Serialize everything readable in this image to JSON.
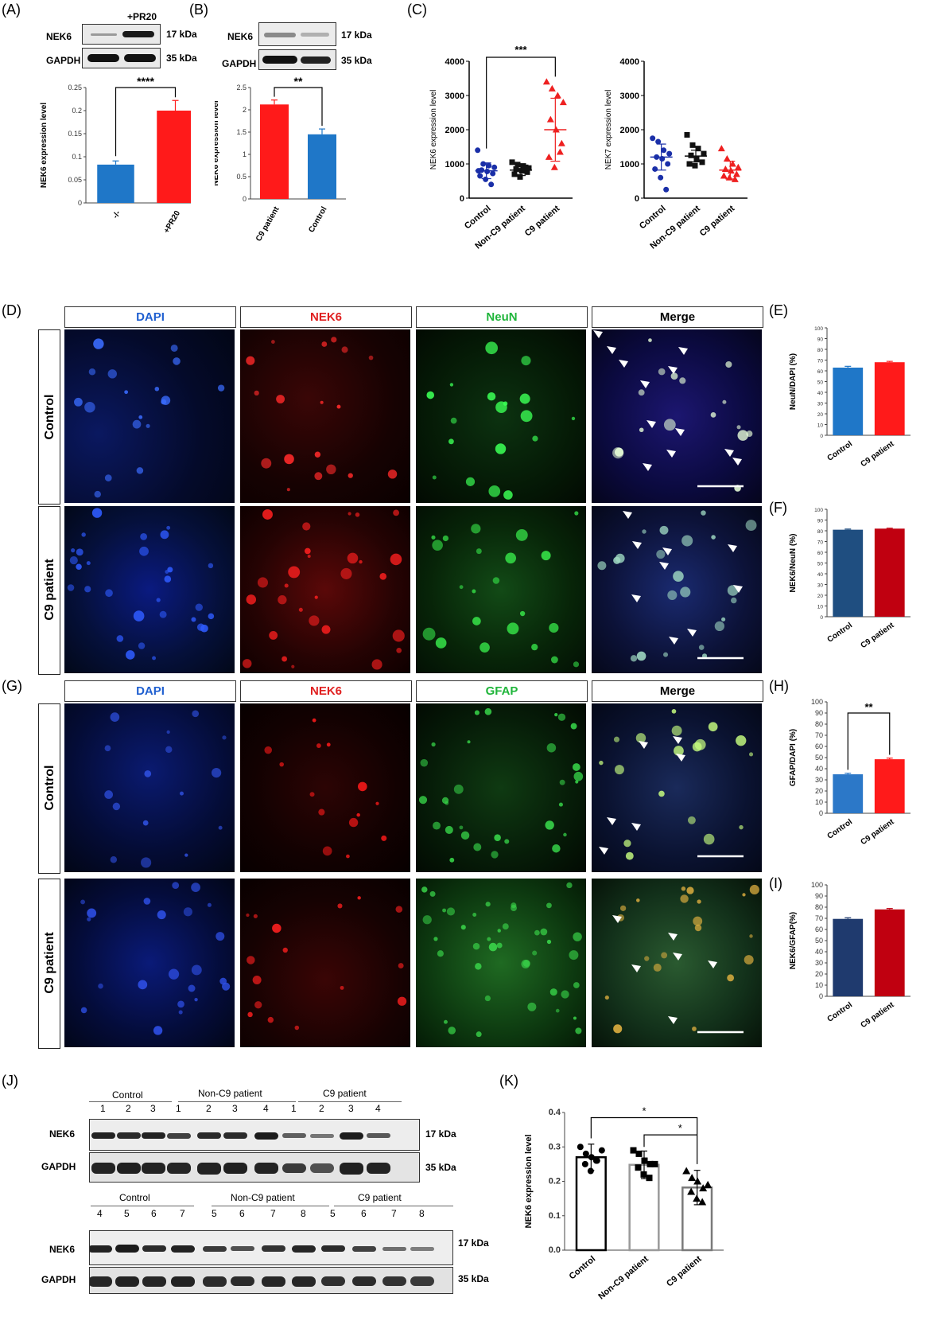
{
  "panels": {
    "A": "(A)",
    "B": "(B)",
    "C": "(C)",
    "D": "(D)",
    "E": "(E)",
    "F": "(F)",
    "G": "(G)",
    "H": "(H)",
    "I": "(I)",
    "J": "(J)",
    "K": "(K)"
  },
  "blots": {
    "A": {
      "treatment_label": "+PR20",
      "rows": [
        "NEK6",
        "GAPDH"
      ],
      "kda": [
        "17 kDa",
        "35 kDa"
      ]
    },
    "B": {
      "rows": [
        "NEK6",
        "GAPDH"
      ],
      "kda": [
        "17 kDa",
        "35 kDa"
      ]
    },
    "J_top": {
      "groups": [
        "Control",
        "Non-C9 patient",
        "C9 patient"
      ],
      "lanes": [
        "1",
        "2",
        "3",
        "1",
        "2",
        "3",
        "4",
        "1",
        "2",
        "3",
        "4"
      ],
      "rows": [
        "NEK6",
        "GAPDH"
      ],
      "kda": [
        "17 kDa",
        "35 kDa"
      ]
    },
    "J_bottom": {
      "groups": [
        "Control",
        "Non-C9 patient",
        "C9 patient"
      ],
      "lanes": [
        "4",
        "5",
        "6",
        "7",
        "5",
        "6",
        "7",
        "8",
        "5",
        "6",
        "7",
        "8"
      ],
      "rows": [
        "NEK6",
        "GAPDH"
      ],
      "kda": [
        "17 kDa",
        "35 kDa"
      ]
    }
  },
  "micrographs": {
    "D": {
      "columns": [
        "DAPI",
        "NEK6",
        "NeuN",
        "Merge"
      ],
      "rows": [
        "Control",
        "C9 patient"
      ]
    },
    "G": {
      "columns": [
        "DAPI",
        "NEK6",
        "GFAP",
        "Merge"
      ],
      "rows": [
        "Control",
        "C9 patient"
      ]
    },
    "column_colors": [
      "#1f5fd0",
      "#e02020",
      "#1fb53a",
      "#000000"
    ]
  },
  "chart_data": [
    {
      "panel": "A",
      "type": "bar",
      "categories": [
        "-/-",
        "+PR20"
      ],
      "values": [
        0.083,
        0.2
      ],
      "errors": [
        0.008,
        0.022
      ],
      "colors": [
        "#1f77c8",
        "#ff1a1a"
      ],
      "ylabel": "NEK6 expression level",
      "ylim": [
        0,
        0.25
      ],
      "yticks": [
        "0",
        "0.05",
        "0.1",
        "0.15",
        "0.2",
        "0.25"
      ],
      "significance": "****"
    },
    {
      "panel": "B",
      "type": "bar",
      "categories": [
        "C9 patient",
        "Control"
      ],
      "values": [
        2.12,
        1.45
      ],
      "errors": [
        0.1,
        0.12
      ],
      "colors": [
        "#ff1a1a",
        "#1f77c8"
      ],
      "ylabel": "NEK6 expression level",
      "ylim": [
        0,
        2.5
      ],
      "yticks": [
        "0",
        "0.5",
        "1",
        "1.5",
        "2",
        "2.5"
      ],
      "significance": "**"
    },
    {
      "panel": "C-left",
      "type": "scatter",
      "categories": [
        "Control",
        "Non-C9 patient",
        "C9 patient"
      ],
      "ylabel": "NEK6 expression level",
      "ylim": [
        0,
        4000
      ],
      "yticks": [
        "0",
        "1000",
        "2000",
        "3000",
        "4000"
      ],
      "means": [
        800,
        820,
        2000
      ],
      "sd": [
        230,
        160,
        920
      ],
      "series": [
        {
          "values": [
            1400,
            1000,
            950,
            900,
            820,
            780,
            720,
            650,
            550,
            400,
            800
          ]
        },
        {
          "values": [
            1050,
            980,
            940,
            880,
            850,
            800,
            760,
            700,
            620,
            900
          ]
        },
        {
          "values": [
            3400,
            3200,
            3000,
            2800,
            2300,
            2000,
            1600,
            1200,
            900,
            1350
          ]
        }
      ],
      "colors": [
        "#1a2fa8",
        "#111111",
        "#ee2020"
      ],
      "markers": [
        "circle",
        "square",
        "triangle"
      ],
      "significance": "***"
    },
    {
      "panel": "C-right",
      "type": "scatter",
      "categories": [
        "Control",
        "Non-C9 patient",
        "C9 patient"
      ],
      "ylabel": "NEK7 expression level",
      "ylim": [
        0,
        4000
      ],
      "yticks": [
        "0",
        "1000",
        "2000",
        "3000",
        "4000"
      ],
      "means": [
        1200,
        1230,
        820
      ],
      "sd": [
        380,
        170,
        260
      ],
      "series": [
        {
          "values": [
            1750,
            1650,
            1400,
            1300,
            1200,
            1150,
            1000,
            850,
            600,
            250
          ]
        },
        {
          "values": [
            1850,
            1550,
            1450,
            1300,
            1250,
            1150,
            1050,
            1000,
            950
          ]
        },
        {
          "values": [
            1450,
            1150,
            1000,
            900,
            850,
            800,
            700,
            650,
            600,
            550
          ]
        }
      ],
      "colors": [
        "#1a2fa8",
        "#111111",
        "#ee2020"
      ],
      "markers": [
        "circle",
        "square",
        "triangle"
      ]
    },
    {
      "panel": "E",
      "type": "bar",
      "categories": [
        "Control",
        "C9 patient"
      ],
      "values": [
        63,
        68
      ],
      "errors": [
        1.2,
        0.8
      ],
      "colors": [
        "#1f77c8",
        "#ff1a1a"
      ],
      "ylabel": "NeuN/DAPI (%)",
      "ylim": [
        0,
        100
      ],
      "yticks": [
        "0",
        "10",
        "20",
        "30",
        "40",
        "50",
        "60",
        "70",
        "80",
        "90",
        "100"
      ]
    },
    {
      "panel": "F",
      "type": "bar",
      "categories": [
        "Control",
        "C9 patient"
      ],
      "values": [
        81,
        82
      ],
      "errors": [
        0.6,
        0.4
      ],
      "colors": [
        "#1f4e80",
        "#c00010"
      ],
      "ylabel": "NEK6/NeuN (%)",
      "ylim": [
        0,
        100
      ],
      "yticks": [
        "0",
        "10",
        "20",
        "30",
        "40",
        "50",
        "60",
        "70",
        "80",
        "90",
        "100"
      ]
    },
    {
      "panel": "H",
      "type": "bar",
      "categories": [
        "Control",
        "C9 patient"
      ],
      "values": [
        35,
        48.5
      ],
      "errors": [
        1,
        1
      ],
      "colors": [
        "#2c78c8",
        "#ff1a1a"
      ],
      "ylabel": "GFAP/DAPI (%)",
      "ylim": [
        0,
        100
      ],
      "yticks": [
        "0",
        "10",
        "20",
        "30",
        "40",
        "50",
        "60",
        "70",
        "80",
        "90",
        "100"
      ],
      "significance": "**"
    },
    {
      "panel": "I",
      "type": "bar",
      "categories": [
        "Control",
        "C9 patient"
      ],
      "values": [
        69.5,
        78
      ],
      "errors": [
        1,
        0.8
      ],
      "colors": [
        "#1f3a6e",
        "#c00010"
      ],
      "ylabel": "NEK6/GFAP(%)",
      "ylim": [
        0,
        100
      ],
      "yticks": [
        "0",
        "10",
        "20",
        "30",
        "40",
        "50",
        "60",
        "70",
        "80",
        "90",
        "100"
      ]
    },
    {
      "panel": "K",
      "type": "bar",
      "categories": [
        "Control",
        "Non-C9 patient",
        "C9 patient"
      ],
      "values": [
        0.27,
        0.248,
        0.182
      ],
      "errors": [
        0.038,
        0.04,
        0.05
      ],
      "ylabel": "NEK6 expression level",
      "ylim": [
        0,
        0.4
      ],
      "yticks": [
        "0.0",
        "0.1",
        "0.2",
        "0.3",
        "0.4"
      ],
      "points": [
        [
          0.3,
          0.28,
          0.27,
          0.26,
          0.25,
          0.23,
          0.26,
          0.29
        ],
        [
          0.29,
          0.28,
          0.26,
          0.25,
          0.24,
          0.22,
          0.21,
          0.25
        ],
        [
          0.23,
          0.21,
          0.2,
          0.18,
          0.17,
          0.15,
          0.14,
          0.19
        ]
      ],
      "markers": [
        "circle",
        "square",
        "triangle"
      ],
      "bar_edge_colors": [
        "#000000",
        "#9a9a9a",
        "#7a7a7a"
      ],
      "significance": [
        "*",
        "*"
      ]
    }
  ]
}
